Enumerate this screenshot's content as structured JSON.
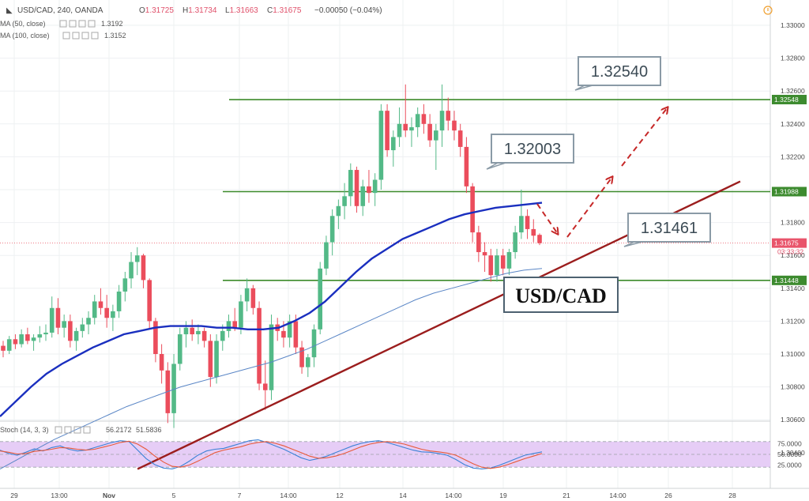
{
  "header": {
    "symbol": "USD/CAD, 240, OANDA",
    "ohlc": [
      {
        "k": "O",
        "v": "1.31725"
      },
      {
        "k": "H",
        "v": "1.31734"
      },
      {
        "k": "L",
        "v": "1.31663"
      },
      {
        "k": "C",
        "v": "1.31675"
      }
    ],
    "change": "−0.00050 (−0.04%)",
    "indicators": [
      {
        "label": "MA (50, close)",
        "value": "1.3192",
        "color": "#1a2fbf"
      },
      {
        "label": "MA (100, close)",
        "value": "1.3152",
        "color": "#4f7fbf"
      }
    ]
  },
  "chart_data": {
    "type": "candlestick",
    "title": "USD/CAD",
    "ylim": [
      1.303,
      1.331
    ],
    "yticks": [
      "1.33000",
      "1.32800",
      "1.32600",
      "1.32400",
      "1.32200",
      "1.32000",
      "1.31800",
      "1.31600",
      "1.31400",
      "1.31200",
      "1.31000",
      "1.30800",
      "1.30600",
      "1.30400"
    ],
    "x_ticks": [
      "29",
      "13:00",
      "Nov",
      "5",
      "7",
      "14:00",
      "12",
      "14",
      "14:00",
      "19",
      "21",
      "14:00",
      "26",
      "28"
    ],
    "price_labels": [
      {
        "value": 1.32548,
        "text": "1.32548",
        "bg": "#3d8b2f"
      },
      {
        "value": 1.31988,
        "text": "1.31988",
        "bg": "#3d8b2f"
      },
      {
        "value": 1.31675,
        "text": "1.31675",
        "bg": "#e9546b"
      },
      {
        "value": 1.31448,
        "text": "1.31448",
        "bg": "#3d8b2f"
      }
    ],
    "countdown": "03:33:32",
    "horizontal_levels": [
      {
        "value": 1.32548,
        "callout": "1.32540"
      },
      {
        "value": 1.31988,
        "callout": "1.32003"
      },
      {
        "value": 1.31448,
        "callout": "1.31461"
      }
    ],
    "candles": [
      [
        1.3105,
        1.3108,
        1.3098,
        1.3102
      ],
      [
        1.3102,
        1.3111,
        1.31,
        1.3109
      ],
      [
        1.3109,
        1.3112,
        1.3103,
        1.3106
      ],
      [
        1.3106,
        1.3115,
        1.3104,
        1.3112
      ],
      [
        1.3112,
        1.3116,
        1.3106,
        1.3108
      ],
      [
        1.3108,
        1.3112,
        1.3102,
        1.311
      ],
      [
        1.311,
        1.3117,
        1.3107,
        1.3112
      ],
      [
        1.3112,
        1.3118,
        1.3108,
        1.3113
      ],
      [
        1.3113,
        1.3135,
        1.311,
        1.3128
      ],
      [
        1.3128,
        1.3134,
        1.3112,
        1.3116
      ],
      [
        1.3116,
        1.3124,
        1.311,
        1.312
      ],
      [
        1.312,
        1.3124,
        1.3104,
        1.3108
      ],
      [
        1.3108,
        1.3116,
        1.3102,
        1.3114
      ],
      [
        1.3114,
        1.3122,
        1.311,
        1.3118
      ],
      [
        1.3118,
        1.3126,
        1.3112,
        1.3122
      ],
      [
        1.3122,
        1.3136,
        1.3118,
        1.3132
      ],
      [
        1.3132,
        1.314,
        1.3124,
        1.3128
      ],
      [
        1.3128,
        1.3136,
        1.3116,
        1.3122
      ],
      [
        1.3122,
        1.313,
        1.3114,
        1.3126
      ],
      [
        1.3126,
        1.3142,
        1.3122,
        1.3138
      ],
      [
        1.3138,
        1.315,
        1.3132,
        1.3146
      ],
      [
        1.3146,
        1.3162,
        1.314,
        1.3156
      ],
      [
        1.3156,
        1.3165,
        1.3148,
        1.316
      ],
      [
        1.316,
        1.3161,
        1.314,
        1.3145
      ],
      [
        1.3145,
        1.3146,
        1.3115,
        1.312
      ],
      [
        1.312,
        1.3122,
        1.3095,
        1.31
      ],
      [
        1.31,
        1.3106,
        1.3082,
        1.309
      ],
      [
        1.309,
        1.3095,
        1.3058,
        1.3064
      ],
      [
        1.3064,
        1.31,
        1.3055,
        1.3094
      ],
      [
        1.3094,
        1.3116,
        1.309,
        1.3112
      ],
      [
        1.3112,
        1.312,
        1.3104,
        1.3116
      ],
      [
        1.3116,
        1.3121,
        1.3108,
        1.3112
      ],
      [
        1.3112,
        1.3118,
        1.3106,
        1.3114
      ],
      [
        1.3114,
        1.3116,
        1.3104,
        1.3108
      ],
      [
        1.3108,
        1.3112,
        1.308,
        1.3086
      ],
      [
        1.3086,
        1.3112,
        1.3082,
        1.3108
      ],
      [
        1.3108,
        1.3118,
        1.3102,
        1.3114
      ],
      [
        1.3114,
        1.3124,
        1.311,
        1.312
      ],
      [
        1.312,
        1.3128,
        1.3114,
        1.3116
      ],
      [
        1.3116,
        1.3136,
        1.3112,
        1.3132
      ],
      [
        1.3132,
        1.3146,
        1.3126,
        1.314
      ],
      [
        1.314,
        1.3142,
        1.3124,
        1.3128
      ],
      [
        1.3128,
        1.3132,
        1.3078,
        1.3082
      ],
      [
        1.3082,
        1.3096,
        1.3066,
        1.3078
      ],
      [
        1.3078,
        1.3124,
        1.3072,
        1.3118
      ],
      [
        1.3118,
        1.3122,
        1.3108,
        1.3114
      ],
      [
        1.3114,
        1.312,
        1.3104,
        1.311
      ],
      [
        1.311,
        1.3124,
        1.3104,
        1.312
      ],
      [
        1.312,
        1.3124,
        1.31,
        1.3104
      ],
      [
        1.3104,
        1.3108,
        1.3088,
        1.3092
      ],
      [
        1.3092,
        1.31,
        1.3086,
        1.3098
      ],
      [
        1.3098,
        1.3118,
        1.3092,
        1.3115
      ],
      [
        1.3115,
        1.3156,
        1.3112,
        1.3152
      ],
      [
        1.3152,
        1.3172,
        1.3148,
        1.3168
      ],
      [
        1.3168,
        1.3188,
        1.316,
        1.3184
      ],
      [
        1.3184,
        1.3194,
        1.3176,
        1.319
      ],
      [
        1.319,
        1.3204,
        1.3182,
        1.3196
      ],
      [
        1.3196,
        1.3216,
        1.319,
        1.3212
      ],
      [
        1.3212,
        1.3214,
        1.3186,
        1.319
      ],
      [
        1.319,
        1.3206,
        1.3184,
        1.3202
      ],
      [
        1.3202,
        1.3212,
        1.3192,
        1.3198
      ],
      [
        1.3198,
        1.321,
        1.319,
        1.3206
      ],
      [
        1.3206,
        1.3252,
        1.32,
        1.3248
      ],
      [
        1.3248,
        1.3252,
        1.322,
        1.3224
      ],
      [
        1.3224,
        1.3236,
        1.3214,
        1.3232
      ],
      [
        1.3232,
        1.325,
        1.3226,
        1.324
      ],
      [
        1.324,
        1.3264,
        1.3232,
        1.3236
      ],
      [
        1.3236,
        1.3244,
        1.3226,
        1.3238
      ],
      [
        1.3238,
        1.325,
        1.3232,
        1.3246
      ],
      [
        1.3246,
        1.3252,
        1.3234,
        1.324
      ],
      [
        1.324,
        1.3246,
        1.3226,
        1.323
      ],
      [
        1.323,
        1.324,
        1.3212,
        1.3236
      ],
      [
        1.3236,
        1.3264,
        1.3226,
        1.3248
      ],
      [
        1.3248,
        1.3256,
        1.3236,
        1.3242
      ],
      [
        1.3242,
        1.3248,
        1.323,
        1.3236
      ],
      [
        1.3236,
        1.324,
        1.322,
        1.3226
      ],
      [
        1.3226,
        1.3232,
        1.3198,
        1.3202
      ],
      [
        1.3202,
        1.3204,
        1.3168,
        1.3174
      ],
      [
        1.3174,
        1.3178,
        1.3156,
        1.3162
      ],
      [
        1.3162,
        1.3168,
        1.315,
        1.316
      ],
      [
        1.316,
        1.3164,
        1.3144,
        1.3148
      ],
      [
        1.3148,
        1.3164,
        1.3144,
        1.316
      ],
      [
        1.316,
        1.3164,
        1.3148,
        1.3152
      ],
      [
        1.3152,
        1.3164,
        1.3148,
        1.3162
      ],
      [
        1.3162,
        1.3178,
        1.3158,
        1.3174
      ],
      [
        1.3174,
        1.32,
        1.317,
        1.3184
      ],
      [
        1.3184,
        1.3188,
        1.317,
        1.3176
      ],
      [
        1.3176,
        1.3182,
        1.3168,
        1.3172
      ],
      [
        1.31725,
        1.31734,
        1.31663,
        1.31675
      ]
    ],
    "ma50": [
      1.3062,
      1.3071,
      1.308,
      1.3088,
      1.3094,
      1.3099,
      1.3104,
      1.3108,
      1.3112,
      1.3114,
      1.3116,
      1.3117,
      1.3117,
      1.3117,
      1.3116,
      1.3116,
      1.3115,
      1.3115,
      1.3116,
      1.312,
      1.3125,
      1.3132,
      1.3141,
      1.315,
      1.3158,
      1.3164,
      1.317,
      1.3174,
      1.3178,
      1.3182,
      1.3185,
      1.3187,
      1.3189,
      1.319,
      1.3191,
      1.3192
    ],
    "ma100": [
      1.303,
      1.3036,
      1.3042,
      1.3048,
      1.3053,
      1.3058,
      1.3063,
      1.3068,
      1.3072,
      1.3076,
      1.308,
      1.3083,
      1.3086,
      1.3089,
      1.3092,
      1.3095,
      1.3099,
      1.3103,
      1.3108,
      1.3113,
      1.3118,
      1.3123,
      1.3128,
      1.3133,
      1.3137,
      1.314,
      1.3143,
      1.3146,
      1.3149,
      1.3151,
      1.3152
    ],
    "trendline": {
      "from": [
        0.17,
        1.303
      ],
      "to": [
        0.915,
        1.3205
      ]
    },
    "stochastic": {
      "label": "Stoch (14, 3, 3)",
      "k_value": "56.2172",
      "d_value": "51.5836",
      "levels": [
        "75.0000",
        "50.0000",
        "25.0000"
      ],
      "k": [
        60,
        52,
        48,
        55,
        63,
        58,
        66,
        70,
        62,
        58,
        60,
        66,
        72,
        78,
        82,
        80,
        60,
        40,
        26,
        18,
        16,
        22,
        34,
        48,
        58,
        62,
        64,
        70,
        76,
        82,
        84,
        78,
        70,
        62,
        52,
        42,
        36,
        40,
        46,
        54,
        62,
        70,
        76,
        80,
        82,
        78,
        72,
        66,
        60,
        56,
        55,
        52,
        48,
        38,
        26,
        18,
        16,
        18,
        24,
        32,
        40,
        48,
        52,
        56
      ],
      "d": [
        58,
        55,
        51,
        52,
        57,
        59,
        62,
        66,
        65,
        62,
        60,
        62,
        67,
        72,
        78,
        81,
        74,
        62,
        46,
        32,
        22,
        20,
        25,
        34,
        44,
        54,
        60,
        64,
        68,
        74,
        78,
        80,
        76,
        70,
        62,
        54,
        46,
        41,
        42,
        46,
        52,
        60,
        68,
        74,
        78,
        80,
        78,
        74,
        68,
        62,
        58,
        56,
        53,
        48,
        38,
        28,
        20,
        17,
        20,
        26,
        33,
        40,
        46,
        52
      ]
    },
    "annotations": [
      "USD/CAD"
    ]
  }
}
